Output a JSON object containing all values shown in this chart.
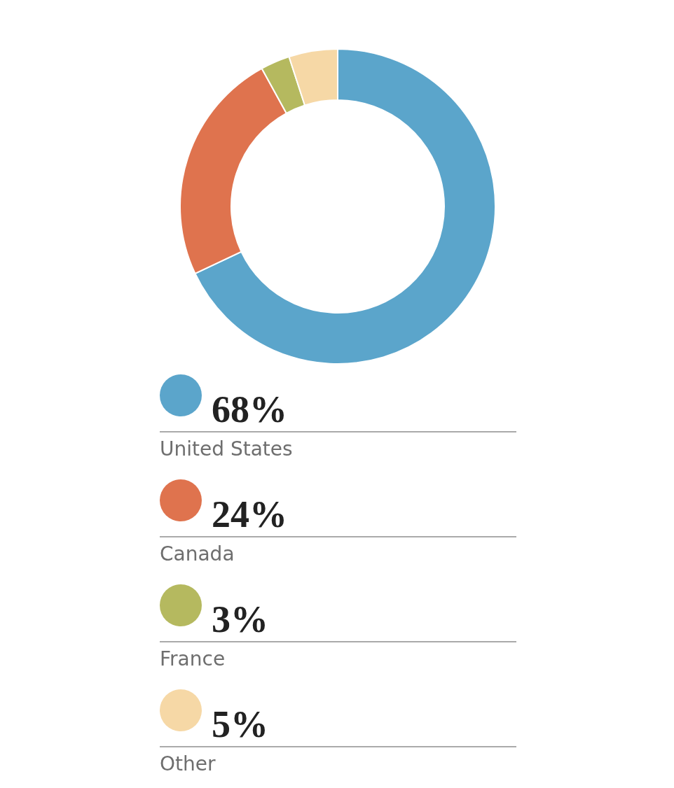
{
  "chart_data": {
    "type": "donut",
    "categories": [
      "United States",
      "Canada",
      "France",
      "Other"
    ],
    "values": [
      68,
      24,
      3,
      5
    ],
    "value_labels": [
      "68%",
      "24%",
      "3%",
      "5%"
    ],
    "colors": [
      "#5ba5cb",
      "#df734e",
      "#b5b95f",
      "#f6d8a6"
    ],
    "legend": "bottom"
  }
}
